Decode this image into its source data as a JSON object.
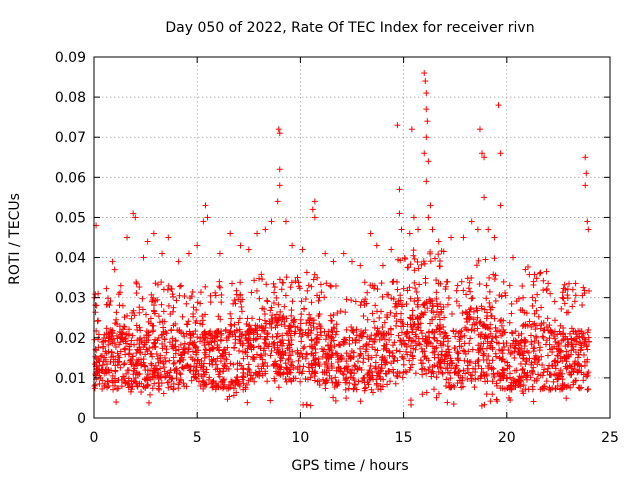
{
  "chart_data": {
    "type": "scatter",
    "title": "Day 050 of 2022, Rate Of TEC Index for receiver rivn",
    "xlabel": "GPS time / hours",
    "ylabel": "ROTI / TECUs",
    "xlim": [
      0,
      25
    ],
    "ylim": [
      0,
      0.09
    ],
    "xticks": [
      0,
      5,
      10,
      15,
      20,
      25
    ],
    "yticks": [
      0,
      0.01,
      0.02,
      0.03,
      0.04,
      0.05,
      0.06,
      0.07,
      0.08,
      0.09
    ],
    "xtick_labels": [
      "0",
      "5",
      "10",
      "15",
      "20",
      "25"
    ],
    "ytick_labels": [
      "0",
      "0.01",
      "0.02",
      "0.03",
      "0.04",
      "0.05",
      "0.06",
      "0.07",
      "0.08",
      "0.09"
    ],
    "grid": true,
    "marker": "+",
    "marker_color": "#ff0000",
    "series": [
      {
        "values_note": "",
        "points": [
          [
            0.1,
            0.048
          ],
          [
            0.2,
            0.031
          ],
          [
            0.9,
            0.039
          ],
          [
            1.0,
            0.037
          ],
          [
            1.3,
            0.033
          ],
          [
            1.6,
            0.045
          ],
          [
            1.9,
            0.051
          ],
          [
            2.0,
            0.05
          ],
          [
            2.4,
            0.04
          ],
          [
            2.6,
            0.044
          ],
          [
            2.9,
            0.046
          ],
          [
            3.3,
            0.041
          ],
          [
            3.6,
            0.045
          ],
          [
            4.1,
            0.039
          ],
          [
            4.6,
            0.041
          ],
          [
            5.0,
            0.043
          ],
          [
            5.3,
            0.049
          ],
          [
            5.4,
            0.053
          ],
          [
            5.5,
            0.05
          ],
          [
            6.1,
            0.041
          ],
          [
            6.6,
            0.046
          ],
          [
            7.1,
            0.043
          ],
          [
            7.5,
            0.042
          ],
          [
            7.9,
            0.046
          ],
          [
            8.3,
            0.047
          ],
          [
            8.6,
            0.049
          ],
          [
            8.9,
            0.054
          ],
          [
            8.95,
            0.072
          ],
          [
            9.0,
            0.071
          ],
          [
            9.0,
            0.062
          ],
          [
            9.0,
            0.058
          ],
          [
            9.3,
            0.049
          ],
          [
            9.6,
            0.043
          ],
          [
            10.1,
            0.042
          ],
          [
            10.6,
            0.052
          ],
          [
            10.7,
            0.054
          ],
          [
            10.7,
            0.05
          ],
          [
            11.2,
            0.041
          ],
          [
            11.6,
            0.039
          ],
          [
            12.1,
            0.041
          ],
          [
            12.5,
            0.039
          ],
          [
            12.9,
            0.038
          ],
          [
            13.4,
            0.046
          ],
          [
            13.7,
            0.043
          ],
          [
            14.0,
            0.038
          ],
          [
            14.4,
            0.042
          ],
          [
            14.7,
            0.073
          ],
          [
            14.8,
            0.057
          ],
          [
            14.8,
            0.051
          ],
          [
            14.9,
            0.047
          ],
          [
            15.3,
            0.046
          ],
          [
            15.4,
            0.072
          ],
          [
            15.5,
            0.05
          ],
          [
            15.7,
            0.047
          ],
          [
            16.0,
            0.086
          ],
          [
            16.05,
            0.084
          ],
          [
            16.1,
            0.081
          ],
          [
            16.1,
            0.077
          ],
          [
            16.15,
            0.074
          ],
          [
            16.1,
            0.07
          ],
          [
            16.0,
            0.066
          ],
          [
            16.2,
            0.064
          ],
          [
            16.1,
            0.059
          ],
          [
            16.3,
            0.053
          ],
          [
            16.2,
            0.05
          ],
          [
            16.4,
            0.047
          ],
          [
            16.7,
            0.044
          ],
          [
            17.3,
            0.045
          ],
          [
            17.9,
            0.045
          ],
          [
            18.3,
            0.049
          ],
          [
            18.6,
            0.047
          ],
          [
            18.7,
            0.072
          ],
          [
            18.8,
            0.066
          ],
          [
            18.9,
            0.065
          ],
          [
            18.9,
            0.055
          ],
          [
            19.1,
            0.047
          ],
          [
            19.4,
            0.045
          ],
          [
            19.6,
            0.078
          ],
          [
            19.7,
            0.066
          ],
          [
            19.7,
            0.053
          ],
          [
            20.3,
            0.04
          ],
          [
            20.9,
            0.037
          ],
          [
            21.3,
            0.034
          ],
          [
            21.6,
            0.036
          ],
          [
            22.1,
            0.031
          ],
          [
            22.7,
            0.03
          ],
          [
            23.2,
            0.032
          ],
          [
            23.8,
            0.065
          ],
          [
            23.85,
            0.061
          ],
          [
            23.8,
            0.058
          ],
          [
            23.9,
            0.049
          ],
          [
            23.95,
            0.047
          ]
        ]
      }
    ]
  }
}
